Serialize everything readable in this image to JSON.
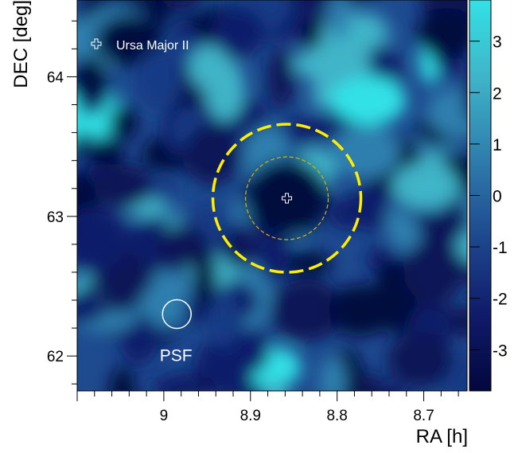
{
  "chart_data": {
    "type": "heatmap",
    "title": "",
    "xlabel": "RA [h]",
    "ylabel": "DEC [deg]",
    "xlim": [
      9.1,
      8.65
    ],
    "ylim": [
      61.75,
      64.55
    ],
    "x_ticks": [
      {
        "value": 9.0,
        "label": "9"
      },
      {
        "value": 8.9,
        "label": "8.9"
      },
      {
        "value": 8.8,
        "label": "8.8"
      },
      {
        "value": 8.7,
        "label": "8.7"
      }
    ],
    "y_ticks": [
      {
        "value": 62,
        "label": "62"
      },
      {
        "value": 63,
        "label": "63"
      },
      {
        "value": 64,
        "label": "64"
      }
    ],
    "colorbar": {
      "range": [
        -3.8,
        3.8
      ],
      "ticks": [
        {
          "value": 3,
          "label": "3"
        },
        {
          "value": 2,
          "label": "2"
        },
        {
          "value": 1,
          "label": "1"
        },
        {
          "value": 0,
          "label": "0"
        },
        {
          "value": -1,
          "label": "-1"
        },
        {
          "value": -2,
          "label": "-2"
        },
        {
          "value": -3,
          "label": "-3"
        }
      ],
      "colors": [
        "#03073d",
        "#101b6b",
        "#1e4a8f",
        "#2f7fae",
        "#3fb4c8",
        "#33e1e6"
      ]
    },
    "annotations": {
      "source": {
        "label": "Ursa Major II",
        "ra": 8.858,
        "dec": 63.13
      },
      "legend_marker_label": "Ursa Major II",
      "psf_label": "PSF",
      "psf_center": {
        "ra": 8.985,
        "dec": 62.3
      },
      "outer_ring_color": "#ffee00",
      "inner_ring_color": "#d9b400"
    }
  }
}
